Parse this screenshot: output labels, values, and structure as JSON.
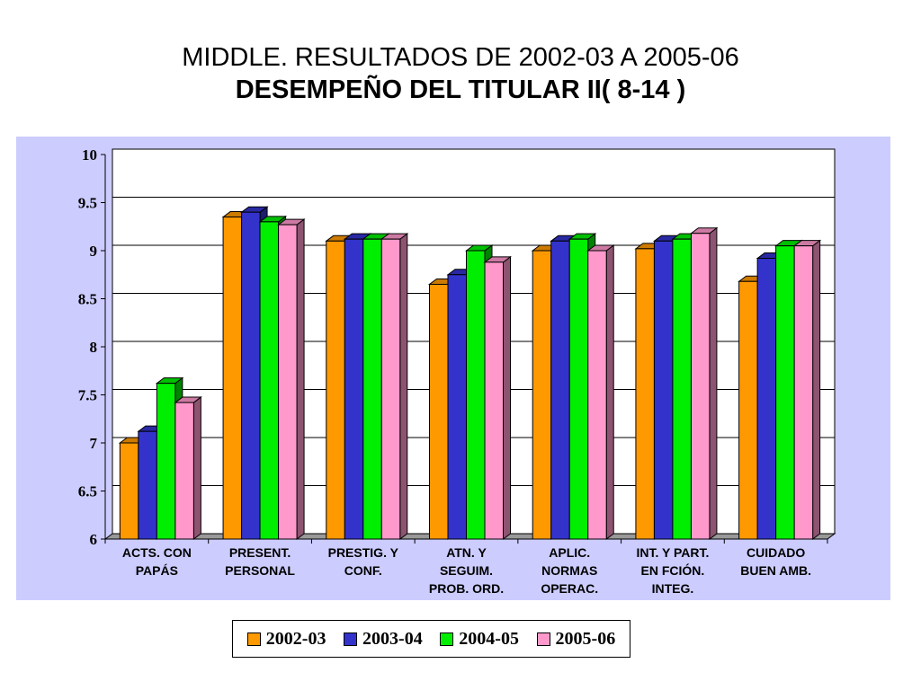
{
  "title_line1": "MIDDLE. RESULTADOS DE 2002-03 A 2005-06",
  "title_line2": "DESEMPEÑO DEL TITULAR II( 8-14 )",
  "chart_data": {
    "type": "bar",
    "categories": [
      [
        "ACTS. CON",
        "PAPÁS"
      ],
      [
        "PRESENT.",
        "PERSONAL"
      ],
      [
        "PRESTIG. Y",
        "CONF."
      ],
      [
        "ATN. Y",
        "SEGUIM.",
        "PROB. ORD."
      ],
      [
        "APLIC.",
        "NORMAS",
        "OPERAC."
      ],
      [
        "INT. Y PART.",
        "EN FCIÓN.",
        "INTEG."
      ],
      [
        "CUIDADO",
        "BUEN AMB."
      ]
    ],
    "series": [
      {
        "name": "2002-03",
        "color": "#ff9900",
        "values": [
          7.0,
          9.35,
          9.1,
          8.65,
          9.0,
          9.02,
          8.68
        ]
      },
      {
        "name": "2003-04",
        "color": "#3333cc",
        "values": [
          7.12,
          9.4,
          9.12,
          8.75,
          9.1,
          9.1,
          8.92
        ]
      },
      {
        "name": "2004-05",
        "color": "#00ee00",
        "values": [
          7.62,
          9.3,
          9.12,
          9.0,
          9.12,
          9.12,
          9.05
        ]
      },
      {
        "name": "2005-06",
        "color": "#ff99cc",
        "values": [
          7.42,
          9.27,
          9.12,
          8.88,
          9.0,
          9.18,
          9.05
        ]
      }
    ],
    "ylim": [
      6,
      10
    ],
    "yticks": [
      6,
      6.5,
      7,
      7.5,
      8,
      8.5,
      9,
      9.5,
      10
    ],
    "ytick_labels": [
      "6",
      "6.5",
      "7",
      "7.5",
      "8",
      "8.5",
      "9",
      "9.5",
      "10"
    ],
    "grid": true,
    "legend_position": "bottom",
    "plot_background": "#ffffff",
    "chart_background": "#ccccff"
  }
}
